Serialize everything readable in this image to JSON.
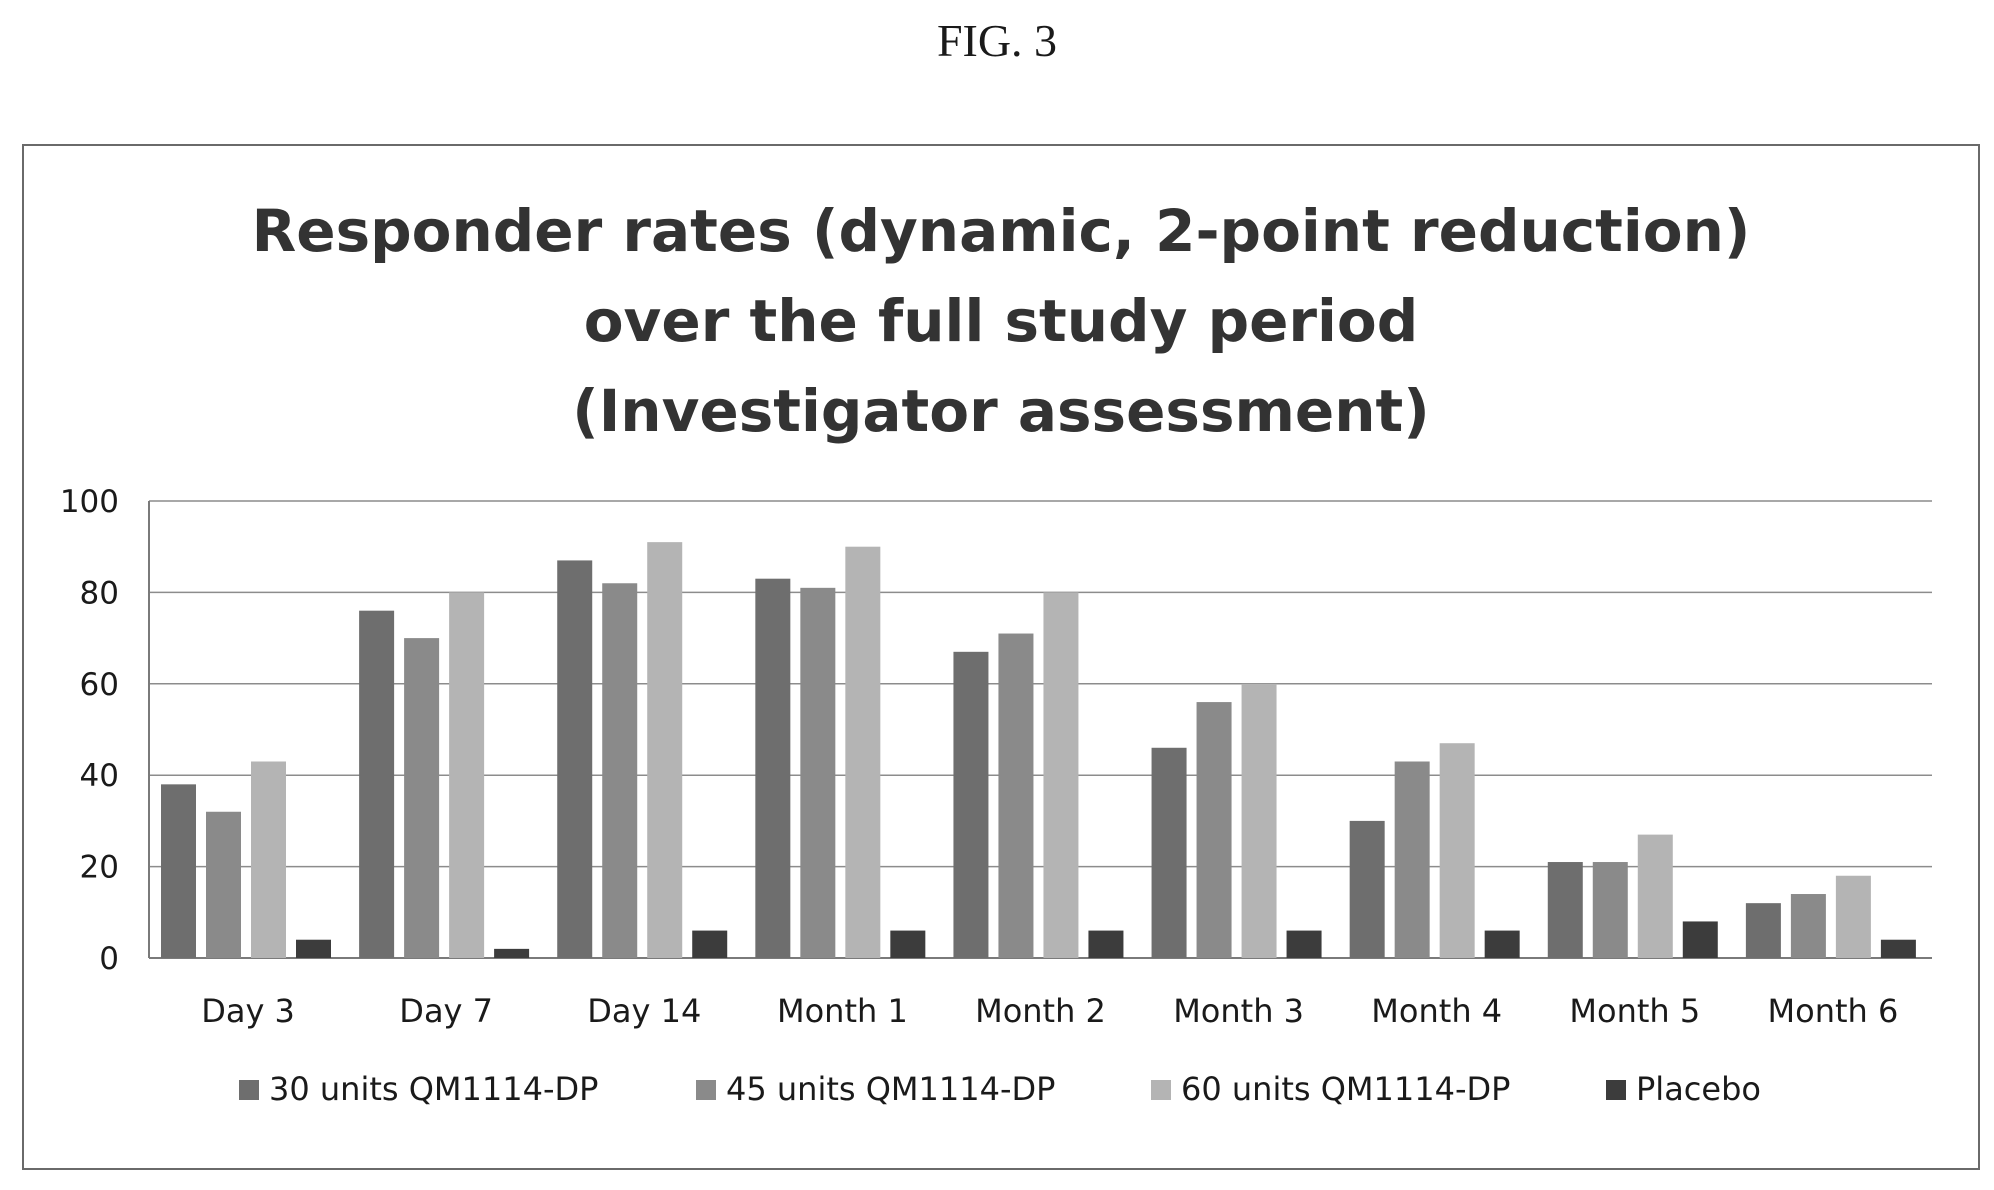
{
  "figure_label": "FIG. 3",
  "chart_data": {
    "type": "bar",
    "title_lines": [
      "Responder rates (dynamic, 2-point reduction)",
      "over the full study period",
      "(Investigator assessment)"
    ],
    "xlabel": "",
    "ylabel": "",
    "ylim": [
      0,
      100
    ],
    "yticks": [
      0,
      20,
      40,
      60,
      80,
      100
    ],
    "grid": true,
    "legend_position": "bottom",
    "categories": [
      "Day 3",
      "Day 7",
      "Day 14",
      "Month 1",
      "Month 2",
      "Month 3",
      "Month 4",
      "Month 5",
      "Month 6"
    ],
    "series": [
      {
        "name": "30 units QM1114-DP",
        "color": "#6e6e6e",
        "values": [
          38,
          76,
          87,
          83,
          67,
          46,
          30,
          21,
          12
        ]
      },
      {
        "name": "45 units QM1114-DP",
        "color": "#8a8a8a",
        "values": [
          32,
          70,
          82,
          81,
          71,
          56,
          43,
          21,
          14
        ]
      },
      {
        "name": "60 units QM1114-DP",
        "color": "#b4b4b4",
        "values": [
          43,
          80,
          91,
          90,
          80,
          60,
          47,
          27,
          18
        ]
      },
      {
        "name": "Placebo",
        "color": "#3c3c3c",
        "values": [
          4,
          2,
          6,
          6,
          6,
          6,
          6,
          8,
          4
        ]
      }
    ]
  }
}
